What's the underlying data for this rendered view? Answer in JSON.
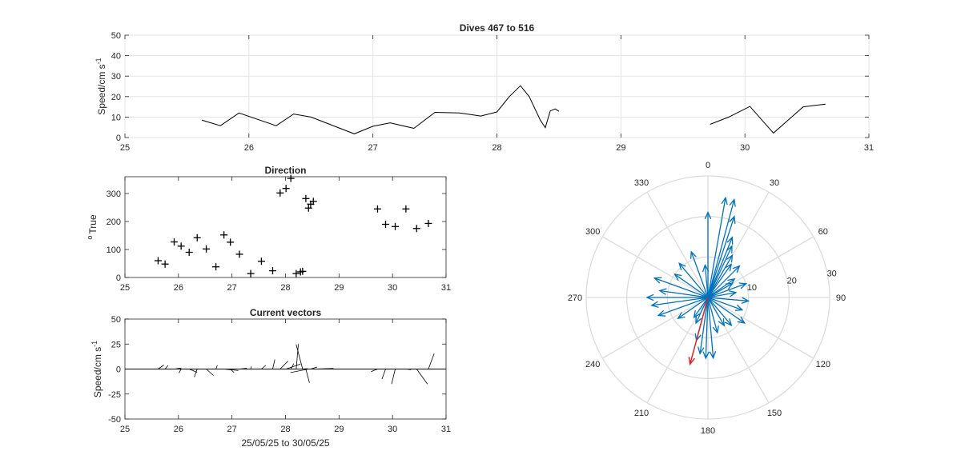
{
  "chart_data": [
    {
      "id": "speed",
      "type": "line",
      "title": "Dives 467 to 516",
      "ylabel": "Speed/cm s",
      "ylabel_exp": "-1",
      "xlabel": "",
      "xlim": [
        25,
        31
      ],
      "ylim": [
        0,
        50
      ],
      "xticks": [
        25,
        26,
        27,
        28,
        29,
        30,
        31
      ],
      "yticks": [
        0,
        10,
        20,
        30,
        40,
        50
      ],
      "grid": true,
      "color": "#000000",
      "segments": [
        [
          [
            25.62,
            8.5
          ],
          [
            25.77,
            5.8
          ],
          [
            25.92,
            12
          ],
          [
            26.22,
            5.8
          ],
          [
            26.36,
            11.5
          ],
          [
            26.5,
            10
          ],
          [
            26.85,
            1.8
          ],
          [
            27.0,
            5.5
          ],
          [
            27.14,
            7.2
          ],
          [
            27.33,
            4.5
          ],
          [
            27.5,
            12.3
          ],
          [
            27.7,
            12
          ],
          [
            27.87,
            10.5
          ],
          [
            28.0,
            12.5
          ],
          [
            28.1,
            20
          ],
          [
            28.19,
            25.3
          ],
          [
            28.26,
            20
          ],
          [
            28.35,
            8.5
          ],
          [
            28.39,
            4.8
          ],
          [
            28.43,
            13
          ],
          [
            28.47,
            14
          ],
          [
            28.5,
            12.8
          ]
        ],
        [
          [
            29.72,
            6.5
          ],
          [
            29.87,
            10
          ],
          [
            30.04,
            15.2
          ],
          [
            30.23,
            2.2
          ],
          [
            30.47,
            15
          ],
          [
            30.65,
            16.3
          ]
        ]
      ]
    },
    {
      "id": "direction",
      "type": "scatter",
      "title": "Direction",
      "ylabel": "True",
      "ylabel_prefix": "o",
      "xlabel": "",
      "xlim": [
        25,
        31
      ],
      "ylim": [
        0,
        360
      ],
      "xticks": [
        25,
        26,
        27,
        28,
        29,
        30,
        31
      ],
      "yticks": [
        0,
        100,
        200,
        300
      ],
      "grid": false,
      "marker": "+",
      "color": "#000000",
      "points": [
        [
          25.62,
          60
        ],
        [
          25.75,
          48
        ],
        [
          25.92,
          127
        ],
        [
          26.05,
          112
        ],
        [
          26.2,
          90
        ],
        [
          26.35,
          142
        ],
        [
          26.52,
          102
        ],
        [
          26.7,
          38
        ],
        [
          26.85,
          152
        ],
        [
          26.97,
          126
        ],
        [
          27.14,
          83
        ],
        [
          27.35,
          14
        ],
        [
          27.55,
          58
        ],
        [
          27.76,
          24
        ],
        [
          27.9,
          302
        ],
        [
          28.01,
          318
        ],
        [
          28.1,
          354
        ],
        [
          28.2,
          14
        ],
        [
          28.28,
          20
        ],
        [
          28.32,
          22
        ],
        [
          28.38,
          282
        ],
        [
          28.43,
          248
        ],
        [
          28.47,
          262
        ],
        [
          28.52,
          272
        ],
        [
          29.72,
          245
        ],
        [
          29.87,
          190
        ],
        [
          30.05,
          182
        ],
        [
          30.25,
          245
        ],
        [
          30.45,
          175
        ],
        [
          30.67,
          193
        ]
      ]
    },
    {
      "id": "vectors",
      "type": "line",
      "title": "Current vectors",
      "ylabel": "Speed/cm s",
      "ylabel_exp": "-1",
      "xlabel": "25/05/25 to 30/05/25",
      "xlim": [
        25,
        31
      ],
      "ylim": [
        -50,
        50
      ],
      "xticks": [
        25,
        26,
        27,
        28,
        29,
        30,
        31
      ],
      "yticks": [
        -50,
        -25,
        0,
        25,
        50
      ],
      "grid": false,
      "color": "#000000",
      "baseline": 0,
      "sticks": [
        [
          25.62,
          0.8,
          4.0
        ],
        [
          25.75,
          0.4,
          3.5
        ],
        [
          25.92,
          1.0,
          1.0
        ],
        [
          26.05,
          -0.3,
          -4
        ],
        [
          26.2,
          1.1,
          -3.3
        ],
        [
          26.35,
          -0.4,
          -8
        ],
        [
          26.52,
          1.0,
          -6.5
        ],
        [
          26.7,
          0.2,
          3.8
        ],
        [
          26.85,
          2.0,
          -1.5
        ],
        [
          26.97,
          0.5,
          -3.4
        ],
        [
          27.14,
          1.0,
          0.8
        ],
        [
          27.35,
          0.1,
          2.5
        ],
        [
          27.55,
          0.6,
          3.7
        ],
        [
          27.76,
          0.3,
          9.5
        ],
        [
          27.9,
          1.1,
          8.0
        ],
        [
          28.01,
          2.0,
          5.0
        ],
        [
          28.1,
          0.4,
          5.5
        ],
        [
          28.2,
          0.3,
          25.0
        ],
        [
          28.28,
          1.0,
          0.4
        ],
        [
          28.32,
          -0.9,
          24.6
        ],
        [
          28.38,
          0.5,
          -13.8
        ],
        [
          28.43,
          -2.5,
          -3.5
        ],
        [
          28.47,
          0.9,
          2.0
        ],
        [
          28.52,
          2.8,
          0.6
        ],
        [
          29.72,
          -0.9,
          -2.6
        ],
        [
          29.87,
          -0.5,
          -10
        ],
        [
          30.05,
          -0.5,
          -15
        ],
        [
          30.25,
          0.7,
          -0.6
        ],
        [
          30.45,
          1.5,
          -15
        ],
        [
          30.67,
          0.8,
          15.5
        ]
      ]
    },
    {
      "id": "polar",
      "type": "polar",
      "title": "",
      "theta_labels": [
        "0",
        "30",
        "60",
        "90",
        "120",
        "150",
        "180",
        "210",
        "240",
        "270",
        "300",
        "330"
      ],
      "r_ticks": [
        10,
        20,
        30
      ],
      "r_max": 30,
      "colors": {
        "vectors": "#0072BD",
        "mean": "#D62728"
      },
      "vectors": [
        [
          0,
          21
        ],
        [
          10,
          25
        ],
        [
          15,
          25
        ],
        [
          18,
          21
        ],
        [
          22,
          16
        ],
        [
          25,
          14
        ],
        [
          30,
          12
        ],
        [
          35,
          10
        ],
        [
          45,
          11
        ],
        [
          55,
          8
        ],
        [
          60,
          7
        ],
        [
          70,
          10
        ],
        [
          80,
          7
        ],
        [
          95,
          10
        ],
        [
          110,
          9
        ],
        [
          125,
          11
        ],
        [
          140,
          9
        ],
        [
          150,
          8
        ],
        [
          165,
          9
        ],
        [
          175,
          15
        ],
        [
          182,
          15
        ],
        [
          188,
          14
        ],
        [
          195,
          11
        ],
        [
          205,
          7
        ],
        [
          215,
          6
        ],
        [
          235,
          9
        ],
        [
          250,
          13
        ],
        [
          262,
          14
        ],
        [
          270,
          15
        ],
        [
          278,
          12
        ],
        [
          290,
          14
        ],
        [
          305,
          10
        ],
        [
          320,
          11
        ],
        [
          340,
          12
        ],
        [
          355,
          8
        ]
      ],
      "mean_vector": [
        195,
        17
      ]
    }
  ]
}
